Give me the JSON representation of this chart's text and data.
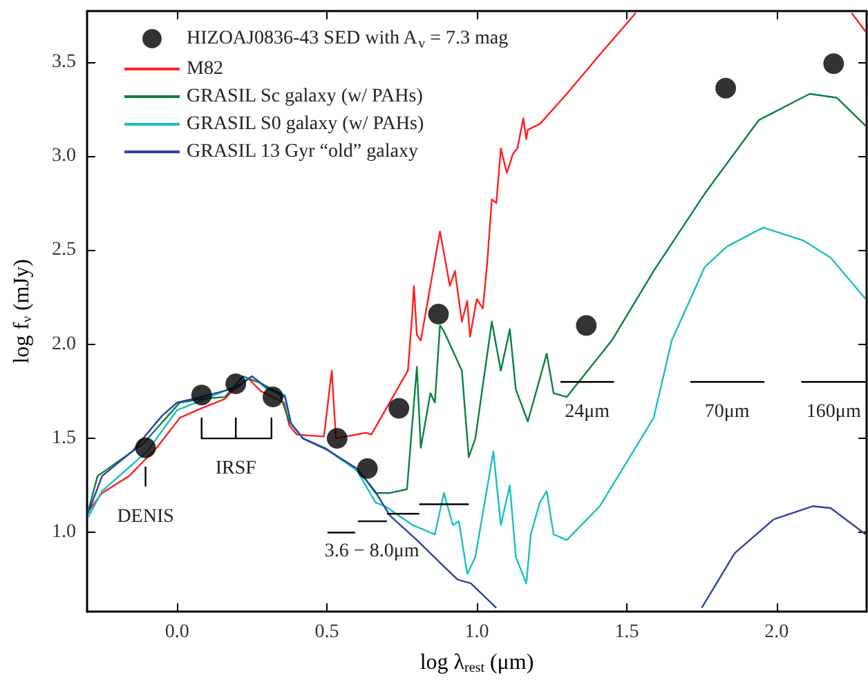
{
  "chart_data": {
    "type": "line",
    "xlabel": "log λ$_{rest}$ (μm)",
    "ylabel": "log f$_{ν}$ (mJy)",
    "xlim": [
      -0.3,
      2.3
    ],
    "ylim": [
      0.58,
      3.77
    ],
    "xticks": [
      {
        "value": 0,
        "label": "0.0"
      },
      {
        "value": 0.5,
        "label": "0.5"
      },
      {
        "value": 1,
        "label": "1.0"
      },
      {
        "value": 1.5,
        "label": "1.5"
      },
      {
        "value": 2,
        "label": "2.0"
      }
    ],
    "yticks": [
      {
        "value": 1,
        "label": "1.0"
      },
      {
        "value": 1.5,
        "label": "1.5"
      },
      {
        "value": 2,
        "label": "2.0"
      },
      {
        "value": 2.5,
        "label": "2.5"
      },
      {
        "value": 3,
        "label": "3.0"
      },
      {
        "value": 3.5,
        "label": "3.5"
      }
    ],
    "grid": false,
    "legend": "top left",
    "series": [
      {
        "name": "HIZOAJ0836-43 SED with A$_{v}$ = 7.3 mag",
        "type": "scatter",
        "marker": "circle",
        "color": "#000000",
        "x": [
          -0.105,
          0.082,
          0.196,
          0.32,
          0.534,
          0.635,
          0.74,
          0.872,
          1.365,
          1.83,
          2.19
        ],
        "values": [
          1.45,
          1.73,
          1.79,
          1.72,
          1.5,
          1.34,
          1.66,
          2.16,
          2.1,
          3.36,
          3.49
        ]
      },
      {
        "name": "M82",
        "color": "#ff2020",
        "x": [
          -0.297,
          -0.25,
          -0.16,
          -0.068,
          0.01,
          0.082,
          0.16,
          0.19,
          0.237,
          0.28,
          0.357,
          0.374,
          0.4,
          0.49,
          0.516,
          0.53,
          0.63,
          0.648,
          0.77,
          0.785,
          0.79,
          0.8,
          0.813,
          0.877,
          0.91,
          0.927,
          0.95,
          0.968,
          0.977,
          1.0,
          1.02,
          1.035,
          1.05,
          1.065,
          1.08,
          1.1,
          1.12,
          1.135,
          1.155,
          1.165,
          1.17,
          1.21,
          1.3,
          1.4,
          1.53,
          null,
          2.25,
          2.297
        ],
        "values": [
          1.11,
          1.21,
          1.3,
          1.45,
          1.61,
          1.66,
          1.71,
          1.76,
          1.82,
          1.75,
          1.69,
          1.57,
          1.52,
          1.51,
          1.86,
          1.5,
          1.53,
          1.52,
          1.86,
          2.17,
          2.31,
          2.05,
          2.02,
          2.6,
          2.31,
          2.39,
          2.12,
          2.23,
          2.04,
          2.24,
          2.19,
          2.44,
          2.77,
          2.75,
          3.04,
          2.91,
          3.01,
          3.04,
          3.2,
          3.09,
          3.14,
          3.17,
          3.33,
          3.52,
          3.76,
          null,
          3.76,
          3.66
        ]
      },
      {
        "name": "GRASIL Sc galaxy (w/ PAHs)",
        "color": "#0a8040",
        "x": [
          -0.297,
          -0.265,
          -0.114,
          0.009,
          0.082,
          0.16,
          0.22,
          0.283,
          0.342,
          0.374,
          0.42,
          0.493,
          0.585,
          0.63,
          0.662,
          0.71,
          0.767,
          0.8,
          0.813,
          0.845,
          0.86,
          0.877,
          0.89,
          0.95,
          0.973,
          0.995,
          1.05,
          1.08,
          1.11,
          1.13,
          1.17,
          1.2,
          1.233,
          1.256,
          1.3,
          1.45,
          1.59,
          1.76,
          1.94,
          2.11,
          2.2,
          2.297
        ],
        "values": [
          1.11,
          1.3,
          1.47,
          1.69,
          1.71,
          1.72,
          1.83,
          1.79,
          1.74,
          1.59,
          1.5,
          1.45,
          1.35,
          1.28,
          1.21,
          1.21,
          1.23,
          1.88,
          1.45,
          1.74,
          1.69,
          2.1,
          2.07,
          1.86,
          1.4,
          1.5,
          2.12,
          1.86,
          2.08,
          1.76,
          1.59,
          1.76,
          1.95,
          1.74,
          1.72,
          2.02,
          2.39,
          2.8,
          3.19,
          3.33,
          3.31,
          3.16
        ]
      },
      {
        "name": "GRASIL S0 galaxy (w/ PAHs)",
        "color": "#1abfbf",
        "x": [
          -0.297,
          -0.25,
          -0.15,
          -0.1,
          0.0,
          0.08,
          0.2,
          0.25,
          0.3,
          0.36,
          0.38,
          0.42,
          0.5,
          0.6,
          0.662,
          0.694,
          0.785,
          0.86,
          0.89,
          0.92,
          0.94,
          0.968,
          0.995,
          1.055,
          1.08,
          1.11,
          1.13,
          1.165,
          1.18,
          1.21,
          1.233,
          1.256,
          1.3,
          1.41,
          1.59,
          1.65,
          1.76,
          1.835,
          1.955,
          2.09,
          2.18,
          2.297
        ],
        "values": [
          1.08,
          1.22,
          1.36,
          1.43,
          1.65,
          1.7,
          1.78,
          1.83,
          1.76,
          1.73,
          1.58,
          1.5,
          1.44,
          1.33,
          1.16,
          1.14,
          1.04,
          0.99,
          1.21,
          1.04,
          1.06,
          0.78,
          0.87,
          1.43,
          1.04,
          1.25,
          0.87,
          0.73,
          0.99,
          1.16,
          1.22,
          0.99,
          0.96,
          1.14,
          1.61,
          2.02,
          2.41,
          2.52,
          2.62,
          2.55,
          2.46,
          2.24
        ]
      },
      {
        "name": "GRASIL 13 Gyr “old” galaxy",
        "color": "#3040a0",
        "x": [
          -0.297,
          -0.25,
          -0.15,
          -0.05,
          0.0,
          0.08,
          0.2,
          0.25,
          0.3,
          0.36,
          0.38,
          0.42,
          0.5,
          0.6,
          0.66,
          0.71,
          0.8,
          0.89,
          0.936,
          0.98,
          1.065,
          null,
          1.75,
          1.86,
          1.99,
          2.12,
          2.18,
          2.297
        ],
        "values": [
          1.1,
          1.3,
          1.43,
          1.62,
          1.69,
          1.72,
          1.77,
          1.83,
          1.77,
          1.72,
          1.58,
          1.5,
          1.44,
          1.34,
          1.22,
          1.09,
          0.96,
          0.82,
          0.75,
          0.73,
          0.6,
          null,
          0.6,
          0.89,
          1.07,
          1.14,
          1.13,
          0.99
        ]
      },
      {
        "color": "#000000",
        "x": [
          -0.105,
          -0.105,
          null,
          0.082,
          0.082,
          0.315,
          0.315,
          null,
          0.196,
          0.196,
          null,
          0.502,
          0.594,
          null,
          0.603,
          0.7,
          null,
          0.7,
          0.808,
          null,
          0.808,
          0.973,
          null,
          1.279,
          1.457,
          null,
          1.712,
          1.959,
          null,
          2.082,
          2.297
        ],
        "values": [
          1.35,
          1.245,
          null,
          1.61,
          1.5,
          1.5,
          1.61,
          null,
          1.61,
          1.5,
          null,
          1.0,
          1.0,
          null,
          1.06,
          1.06,
          null,
          1.1,
          1.1,
          null,
          1.15,
          1.15,
          null,
          1.8,
          1.8,
          null,
          1.8,
          1.8,
          null,
          1.8,
          1.8
        ]
      }
    ],
    "annotations": [
      {
        "text": "DENIS",
        "x": -0.105,
        "y": 1.245
      },
      {
        "text": "IRSF",
        "x": 0.196,
        "y": 1.5
      },
      {
        "text": "3.6 − 8.0μm",
        "x": 0.65,
        "y": 1.06
      },
      {
        "text": "24μm",
        "x": 1.368,
        "y": 1.8
      },
      {
        "text": "70μm",
        "x": 1.835,
        "y": 1.8
      },
      {
        "text": "160μm",
        "x": 2.19,
        "y": 1.8
      }
    ]
  }
}
